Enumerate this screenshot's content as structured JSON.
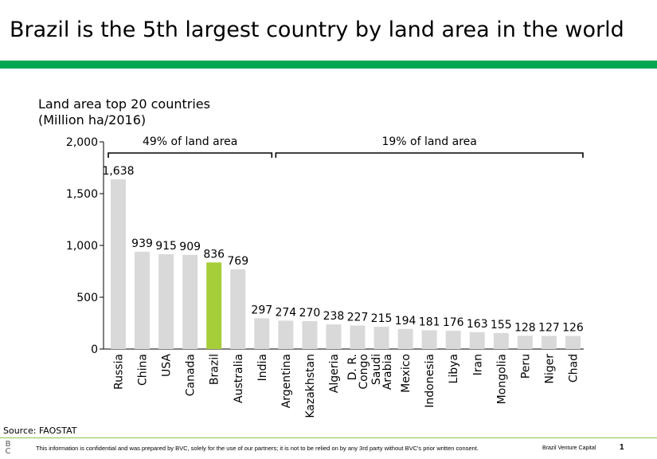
{
  "slide": {
    "title": "Brazil is the 5th largest country by land area in the world",
    "accent_color": "#00a651",
    "source": "Source: FAOSTAT",
    "footer": {
      "logo": "B C",
      "disclaimer": "This information is confidential and was prepared by BVC, solely for the use of our partners; it is not to be relied on by any 3rd party without BVC's prior written consent.",
      "company": "Brazil Venture Capital",
      "page": "1"
    }
  },
  "chart_data": {
    "type": "bar",
    "title": "Land area top 20 countries",
    "subtitle": "(Million ha/2016)",
    "categories": [
      "Russia",
      "China",
      "USA",
      "Canada",
      "Brazil",
      "Australia",
      "India",
      "Argentina",
      "Kazakhstan",
      "Algeria",
      "D. R. Congo",
      "Saudi Arabia",
      "Mexico",
      "Indonesia",
      "Libya",
      "Iran",
      "Mongolia",
      "Peru",
      "Niger",
      "Chad"
    ],
    "values": [
      1638,
      939,
      915,
      909,
      836,
      769,
      297,
      274,
      270,
      238,
      227,
      215,
      194,
      181,
      176,
      163,
      155,
      128,
      127,
      126
    ],
    "highlight": "Brazil",
    "bar_color": "#d9d9d9",
    "highlight_color": "#a6ce39",
    "ylim": [
      0,
      2000
    ],
    "yticks": [
      "0",
      "500",
      "1,000",
      "1,500",
      "2,000"
    ],
    "ytick_values": [
      0,
      500,
      1000,
      1500,
      2000
    ],
    "data_labels": [
      "1,638",
      "939",
      "915",
      "909",
      "836",
      "769",
      "297",
      "274",
      "270",
      "238",
      "227",
      "215",
      "194",
      "181",
      "176",
      "163",
      "155",
      "128",
      "127",
      "126"
    ],
    "annotations": [
      {
        "text": "49% of land area",
        "from": "Russia",
        "to": "India"
      },
      {
        "text": "19% of land area",
        "from": "Argentina",
        "to": "Chad"
      }
    ],
    "grid": false,
    "legend": "none"
  }
}
